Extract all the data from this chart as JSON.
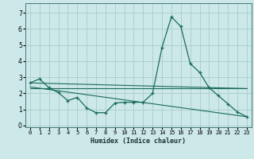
{
  "xlabel": "Humidex (Indice chaleur)",
  "ylabel": "",
  "bg_color": "#cce8e8",
  "grid_color": "#aacccc",
  "line_color": "#1a6b5a",
  "xlim": [
    -0.5,
    23.5
  ],
  "ylim": [
    -0.1,
    7.6
  ],
  "xticks": [
    0,
    1,
    2,
    3,
    4,
    5,
    6,
    7,
    8,
    9,
    10,
    11,
    12,
    13,
    14,
    15,
    16,
    17,
    18,
    19,
    20,
    21,
    22,
    23
  ],
  "yticks": [
    0,
    1,
    2,
    3,
    4,
    5,
    6,
    7
  ],
  "line1_x": [
    0,
    1,
    2,
    3,
    4,
    5,
    6,
    7,
    8,
    9,
    10,
    11,
    12,
    13,
    14,
    15,
    16,
    17,
    18,
    19,
    20,
    21,
    22,
    23
  ],
  "line1_y": [
    2.65,
    2.9,
    2.35,
    2.05,
    1.55,
    1.75,
    1.1,
    0.8,
    0.8,
    1.4,
    1.45,
    1.45,
    1.45,
    2.0,
    4.85,
    6.75,
    6.15,
    3.85,
    3.3,
    2.35,
    1.85,
    1.35,
    0.85,
    0.55
  ],
  "line2_x": [
    0,
    23
  ],
  "line2_y": [
    2.65,
    2.3
  ],
  "line3_x": [
    0,
    23
  ],
  "line3_y": [
    2.4,
    0.55
  ],
  "line4_x": [
    0,
    23
  ],
  "line4_y": [
    2.3,
    2.3
  ]
}
